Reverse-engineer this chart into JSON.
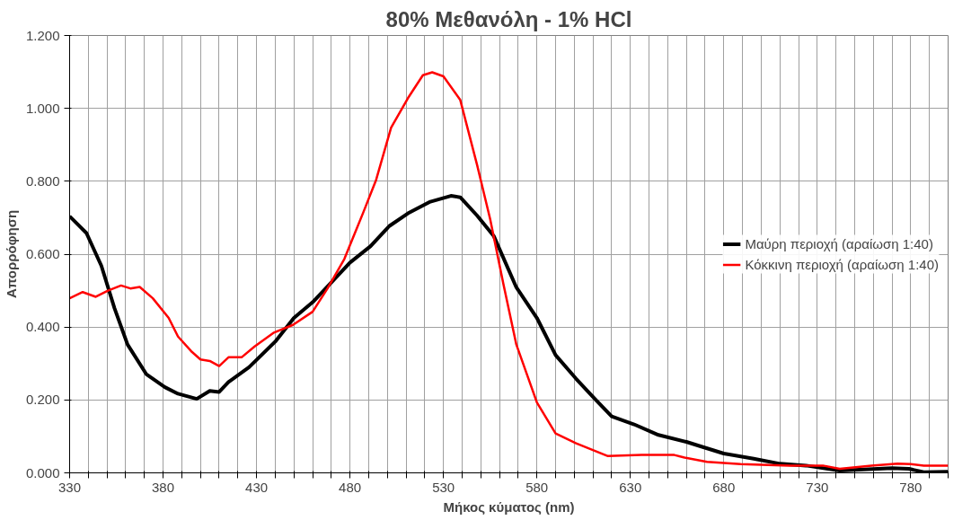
{
  "chart_data": {
    "type": "line",
    "title": "80% Μεθανόλη - 1% HCl",
    "xlabel": "Μήκος κύματος (nm)",
    "ylabel": "Απορρόφηση",
    "xlim": [
      330,
      800
    ],
    "ylim": [
      0,
      1.2
    ],
    "xticks": [
      330,
      {
        "value": 340,
        "label": null
      },
      {
        "value": 350,
        "label": null
      },
      {
        "value": 360,
        "label": null
      },
      {
        "value": 370,
        "label": null
      },
      380,
      {
        "value": 390,
        "label": null
      },
      {
        "value": 400,
        "label": null
      },
      {
        "value": 410,
        "label": null
      },
      {
        "value": 420,
        "label": null
      },
      430,
      {
        "value": 440,
        "label": null
      },
      {
        "value": 450,
        "label": null
      },
      {
        "value": 460,
        "label": null
      },
      {
        "value": 470,
        "label": null
      },
      480,
      {
        "value": 490,
        "label": null
      },
      {
        "value": 500,
        "label": null
      },
      {
        "value": 510,
        "label": null
      },
      {
        "value": 520,
        "label": null
      },
      530,
      {
        "value": 540,
        "label": null
      },
      {
        "value": 550,
        "label": null
      },
      {
        "value": 560,
        "label": null
      },
      {
        "value": 570,
        "label": null
      },
      580,
      {
        "value": 590,
        "label": null
      },
      {
        "value": 600,
        "label": null
      },
      {
        "value": 610,
        "label": null
      },
      {
        "value": 620,
        "label": null
      },
      630,
      {
        "value": 640,
        "label": null
      },
      {
        "value": 650,
        "label": null
      },
      {
        "value": 660,
        "label": null
      },
      {
        "value": 670,
        "label": null
      },
      680,
      {
        "value": 690,
        "label": null
      },
      {
        "value": 700,
        "label": null
      },
      {
        "value": 710,
        "label": null
      },
      {
        "value": 720,
        "label": null
      },
      730,
      {
        "value": 740,
        "label": null
      },
      {
        "value": 750,
        "label": null
      },
      {
        "value": 760,
        "label": null
      },
      {
        "value": 770,
        "label": null
      },
      780,
      {
        "value": 790,
        "label": null
      },
      {
        "value": 800,
        "label": null
      }
    ],
    "yticks": [
      {
        "value": 0,
        "label": "0.000"
      },
      {
        "value": 0.2,
        "label": "0.200"
      },
      {
        "value": 0.4,
        "label": "0.400"
      },
      {
        "value": 0.6,
        "label": "0.600"
      },
      {
        "value": 0.8,
        "label": "0.800"
      },
      {
        "value": 1.0,
        "label": "1.000"
      },
      {
        "value": 1.2,
        "label": "1.200"
      }
    ],
    "grid": true,
    "legend": "right",
    "line_style": "solid",
    "marker": "none",
    "series": [
      {
        "name": "Μαύρη περιοχή (αραίωση 1:40)",
        "color": "#000000",
        "x": [
          330,
          339,
          347,
          354,
          361,
          371,
          381,
          388,
          398,
          405,
          410,
          415,
          426,
          440,
          450,
          460,
          472,
          480,
          491,
          501,
          511,
          523,
          534,
          539,
          548,
          557,
          569,
          580,
          590,
          601,
          611,
          620,
          632,
          645,
          660,
          668,
          680,
          696,
          710,
          724,
          742,
          770,
          779,
          787,
          800
        ],
        "values": [
          0.704,
          0.658,
          0.568,
          0.452,
          0.352,
          0.271,
          0.235,
          0.217,
          0.203,
          0.225,
          0.222,
          0.249,
          0.29,
          0.36,
          0.425,
          0.468,
          0.533,
          0.577,
          0.622,
          0.677,
          0.712,
          0.744,
          0.76,
          0.756,
          0.706,
          0.649,
          0.509,
          0.425,
          0.323,
          0.258,
          0.203,
          0.155,
          0.133,
          0.104,
          0.085,
          0.072,
          0.053,
          0.039,
          0.025,
          0.02,
          0.006,
          0.013,
          0.011,
          0.002,
          0.003
        ]
      },
      {
        "name": "Κόκκινη περιοχή (αραίωση 1:40)",
        "color": "#ff0000",
        "x": [
          330,
          337,
          344,
          350.5,
          357.5,
          362.5,
          367.5,
          374.5,
          383,
          388,
          395,
          400,
          405,
          410,
          415,
          422,
          429,
          439,
          449.5,
          460,
          468,
          477,
          487,
          494,
          502,
          511,
          519,
          524,
          530,
          539,
          548,
          555,
          562,
          569,
          580,
          590,
          601,
          618,
          636,
          653.5,
          659,
          671,
          689,
          715,
          733,
          742,
          759,
          773,
          780,
          787,
          800
        ],
        "values": [
          0.479,
          0.496,
          0.483,
          0.5,
          0.514,
          0.506,
          0.51,
          0.479,
          0.425,
          0.374,
          0.334,
          0.311,
          0.307,
          0.293,
          0.317,
          0.317,
          0.347,
          0.384,
          0.406,
          0.442,
          0.506,
          0.587,
          0.713,
          0.804,
          0.947,
          1.028,
          1.091,
          1.099,
          1.088,
          1.023,
          0.845,
          0.696,
          0.52,
          0.352,
          0.193,
          0.108,
          0.081,
          0.046,
          0.049,
          0.049,
          0.042,
          0.03,
          0.024,
          0.02,
          0.02,
          0.011,
          0.02,
          0.025,
          0.024,
          0.02,
          0.02
        ]
      }
    ]
  }
}
